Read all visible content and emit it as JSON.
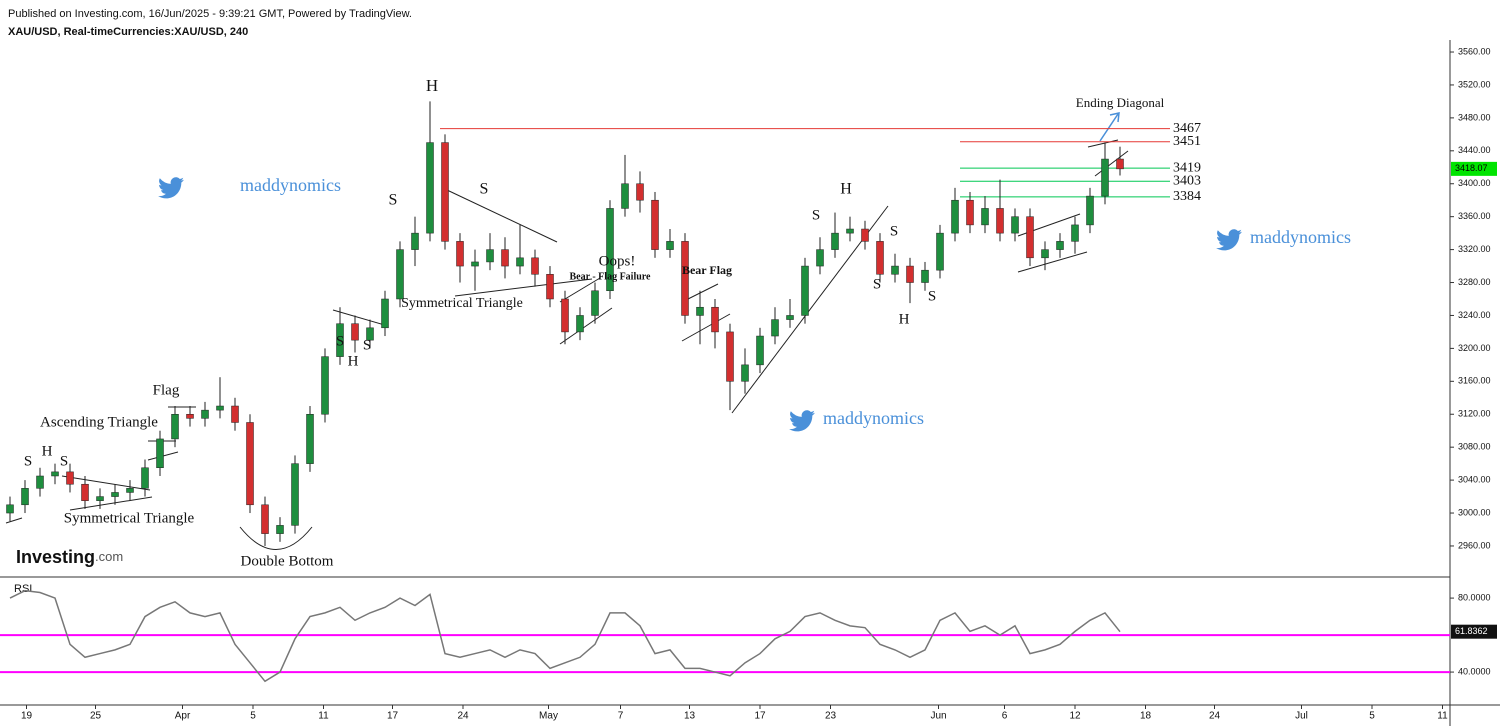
{
  "header": {
    "published": "Published on Investing.com, 16/Jun/2025 - 9:39:21 GMT, Powered by TradingView.",
    "symbol": "XAU/USD, Real-timeCurrencies:XAU/USD, 240"
  },
  "logo": [
    "Investing",
    ".com"
  ],
  "chart_data": [
    {
      "type": "candlestick",
      "up_color": "#1e8e3e",
      "down_color": "#d32f2f",
      "open": [
        3000,
        3010,
        3030,
        3045,
        3050,
        3035,
        3015,
        3020,
        3025,
        3030,
        3055,
        3090,
        3120,
        3115,
        3125,
        3130,
        3110,
        3010,
        2975,
        2985,
        3060,
        3120,
        3190,
        3230,
        3210,
        3225,
        3260,
        3320,
        3340,
        3450,
        3330,
        3300,
        3305,
        3320,
        3300,
        3310,
        3290,
        3260,
        3220,
        3240,
        3270,
        3370,
        3400,
        3380,
        3320,
        3330,
        3240,
        3250,
        3220,
        3160,
        3180,
        3215,
        3235,
        3240,
        3300,
        3320,
        3340,
        3345,
        3330,
        3290,
        3300,
        3280,
        3295,
        3340,
        3380,
        3350,
        3370,
        3340,
        3360,
        3310,
        3320,
        3330,
        3350,
        3385,
        3430
      ],
      "high": [
        3020,
        3040,
        3055,
        3060,
        3060,
        3045,
        3030,
        3035,
        3040,
        3065,
        3100,
        3130,
        3130,
        3135,
        3165,
        3140,
        3120,
        3020,
        2995,
        3070,
        3130,
        3200,
        3250,
        3240,
        3235,
        3270,
        3330,
        3360,
        3500,
        3460,
        3340,
        3320,
        3340,
        3335,
        3350,
        3320,
        3300,
        3270,
        3250,
        3280,
        3380,
        3435,
        3415,
        3390,
        3345,
        3340,
        3270,
        3260,
        3230,
        3200,
        3225,
        3250,
        3260,
        3310,
        3335,
        3365,
        3360,
        3355,
        3340,
        3315,
        3310,
        3305,
        3350,
        3395,
        3390,
        3385,
        3405,
        3370,
        3370,
        3330,
        3340,
        3360,
        3395,
        3450,
        3445
      ],
      "low": [
        2990,
        3000,
        3020,
        3035,
        3025,
        3005,
        3005,
        3010,
        3015,
        3020,
        3045,
        3080,
        3105,
        3105,
        3115,
        3100,
        3000,
        2960,
        2965,
        2975,
        3050,
        3110,
        3180,
        3195,
        3200,
        3215,
        3250,
        3300,
        3330,
        3320,
        3280,
        3270,
        3295,
        3285,
        3290,
        3275,
        3250,
        3205,
        3210,
        3230,
        3260,
        3360,
        3365,
        3310,
        3310,
        3230,
        3205,
        3200,
        3125,
        3145,
        3170,
        3205,
        3225,
        3230,
        3290,
        3310,
        3330,
        3320,
        3280,
        3280,
        3255,
        3270,
        3285,
        3330,
        3340,
        3340,
        3330,
        3330,
        3300,
        3295,
        3310,
        3315,
        3340,
        3375,
        3410
      ],
      "close": [
        3010,
        3030,
        3045,
        3050,
        3035,
        3015,
        3020,
        3025,
        3030,
        3055,
        3090,
        3120,
        3115,
        3125,
        3130,
        3110,
        3010,
        2975,
        2985,
        3060,
        3120,
        3190,
        3230,
        3210,
        3225,
        3260,
        3320,
        3340,
        3450,
        3330,
        3300,
        3305,
        3320,
        3300,
        3310,
        3290,
        3260,
        3220,
        3240,
        3270,
        3370,
        3400,
        3380,
        3320,
        3330,
        3240,
        3250,
        3220,
        3160,
        3180,
        3215,
        3235,
        3240,
        3300,
        3320,
        3340,
        3345,
        3330,
        3290,
        3300,
        3280,
        3295,
        3340,
        3380,
        3350,
        3370,
        3340,
        3360,
        3310,
        3320,
        3330,
        3350,
        3385,
        3430,
        3418.07
      ],
      "last_color": "#00e400",
      "xlim": [
        -0.667,
        96
      ],
      "ylim": [
        2922.3,
        3574.6
      ],
      "yticks": [
        {
          "value": 2960,
          "label": "2960.00"
        },
        {
          "value": 3000,
          "label": "3000.00"
        },
        {
          "value": 3040,
          "label": "3040.00"
        },
        {
          "value": 3080,
          "label": "3080.00"
        },
        {
          "value": 3120,
          "label": "3120.00"
        },
        {
          "value": 3160,
          "label": "3160.00"
        },
        {
          "value": 3200,
          "label": "3200.00"
        },
        {
          "value": 3240,
          "label": "3240.00"
        },
        {
          "value": 3280,
          "label": "3280.00"
        },
        {
          "value": 3320,
          "label": "3320.00"
        },
        {
          "value": 3360,
          "label": "3360.00"
        },
        {
          "value": 3400,
          "label": "3400.00"
        },
        {
          "value": 3440,
          "label": "3440.00"
        },
        {
          "value": 3480,
          "label": "3480.00"
        },
        {
          "value": 3520,
          "label": "3520.00"
        },
        {
          "value": 3560,
          "label": "3560.00"
        }
      ],
      "levels": [
        {
          "value": 3467,
          "color": "#e53935"
        },
        {
          "value": 3451,
          "color": "#e53935"
        },
        {
          "value": 3419,
          "color": "#00c853"
        },
        {
          "value": 3403,
          "color": "#00c853"
        },
        {
          "value": 3384,
          "color": "#00c853"
        }
      ],
      "annotations": [
        "S",
        "H",
        "S",
        "Symmetrical Triangle",
        "Ascending Triangle",
        "Flag",
        "Double Bottom",
        "S",
        "H",
        "S",
        "S",
        "H",
        "S",
        "Symmetrical Triangle",
        "Oops!",
        "Bear - Flag Failure",
        "Bear Flag",
        "S",
        "H",
        "S",
        "S",
        "H",
        "S",
        "Ending Diagonal",
        "maddynomics",
        "maddynomics",
        "maddynomics"
      ]
    },
    {
      "type": "line",
      "title": "RSI",
      "color": "#777777",
      "values": [
        80,
        84,
        83,
        80,
        55,
        48,
        50,
        52,
        55,
        70,
        75,
        78,
        72,
        70,
        72,
        55,
        45,
        35,
        40,
        58,
        70,
        72,
        75,
        68,
        72,
        75,
        80,
        76,
        82,
        50,
        48,
        50,
        52,
        48,
        52,
        50,
        42,
        45,
        48,
        55,
        72,
        72,
        65,
        50,
        52,
        42,
        42,
        40,
        38,
        45,
        50,
        58,
        62,
        70,
        72,
        68,
        65,
        64,
        55,
        52,
        48,
        52,
        68,
        72,
        62,
        65,
        60,
        65,
        50,
        52,
        55,
        62,
        68,
        72,
        61.8362
      ],
      "levels": [
        60,
        40
      ],
      "level_color": "#ff00ff",
      "xlim": [
        -0.667,
        96
      ],
      "ylim": [
        22.2,
        91.4
      ],
      "yticks": [
        {
          "value": 40,
          "label": "40.0000"
        },
        {
          "value": 80,
          "label": "80.0000"
        }
      ],
      "xticks": [
        {
          "value": 1.1,
          "label": "19"
        },
        {
          "value": 5.7,
          "label": "25"
        },
        {
          "value": 11.5,
          "label": "Apr"
        },
        {
          "value": 16.2,
          "label": "5"
        },
        {
          "value": 20.9,
          "label": "11"
        },
        {
          "value": 25.5,
          "label": "17"
        },
        {
          "value": 30.2,
          "label": "24"
        },
        {
          "value": 35.9,
          "label": "May"
        },
        {
          "value": 40.7,
          "label": "7"
        },
        {
          "value": 45.3,
          "label": "13"
        },
        {
          "value": 50,
          "label": "17"
        },
        {
          "value": 54.7,
          "label": "23"
        },
        {
          "value": 61.9,
          "label": "Jun"
        },
        {
          "value": 66.3,
          "label": "6"
        },
        {
          "value": 71,
          "label": "12"
        },
        {
          "value": 75.7,
          "label": "18"
        },
        {
          "value": 80.3,
          "label": "24"
        },
        {
          "value": 86.1,
          "label": "Jul"
        },
        {
          "value": 90.8,
          "label": "5"
        },
        {
          "value": 95.5,
          "label": "11"
        }
      ]
    }
  ]
}
